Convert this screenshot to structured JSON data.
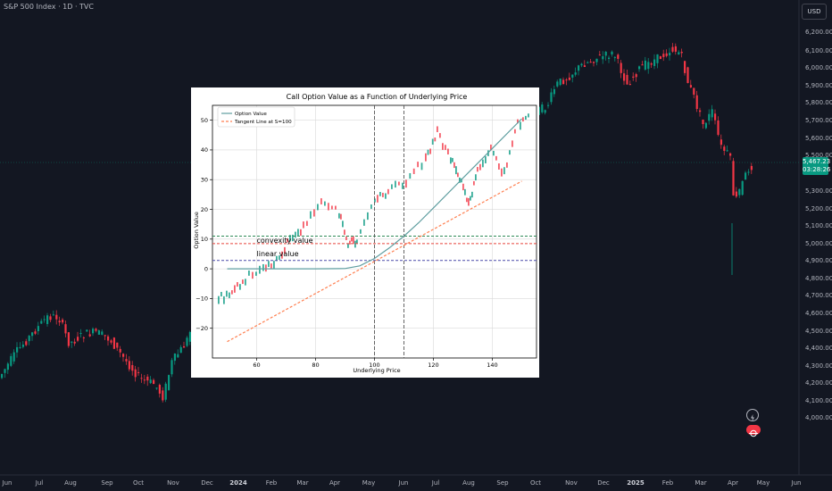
{
  "header": {
    "title": "S&P 500 Index · 1D · TVC",
    "currency": "USD"
  },
  "price_axis": {
    "ticks": [
      "6,200.00",
      "6,100.00",
      "6,000.00",
      "5,900.00",
      "5,800.00",
      "5,700.00",
      "5,600.00",
      "5,500.00",
      "5,300.00",
      "5,200.00",
      "5,100.00",
      "5,000.00",
      "4,900.00",
      "4,800.00",
      "4,700.00",
      "4,600.00",
      "4,500.00",
      "4,400.00",
      "4,300.00",
      "4,200.00",
      "4,100.00",
      "4,000.00"
    ],
    "last_price": "5,467.23",
    "countdown": "03:28:26",
    "last_price_color": "#089981"
  },
  "time_axis": {
    "ticks": [
      "Jun",
      "Jul",
      "Aug",
      "Sep",
      "Oct",
      "Nov",
      "Dec",
      "2024",
      "Feb",
      "Mar",
      "Apr",
      "May",
      "Jun",
      "Jul",
      "Aug",
      "Sep",
      "Oct",
      "Nov",
      "Dec",
      "2025",
      "Feb",
      "Mar",
      "Apr",
      "May",
      "Jun"
    ]
  },
  "colors": {
    "up": "#089981",
    "down": "#f23645",
    "background": "#131722",
    "grid": "#1e222d"
  },
  "icons": [
    "alert-icon",
    "flag-icon"
  ],
  "inset_chart": {
    "chart_data": {
      "type": "line",
      "title": "Call Option Value as a Function of Underlying Price",
      "xlabel": "Underlying Price",
      "ylabel": "Option Value",
      "xlim": [
        45,
        155
      ],
      "ylim": [
        -30,
        55
      ],
      "xticks": [
        60,
        80,
        100,
        120,
        140
      ],
      "yticks": [
        -20,
        -10,
        0,
        10,
        20,
        30,
        40,
        50
      ],
      "grid": true,
      "legend_position": "top-left",
      "series": [
        {
          "name": "Option Value",
          "color": "#5f9ea0",
          "style": "solid",
          "x": [
            50,
            60,
            70,
            80,
            90,
            95,
            100,
            105,
            110,
            115,
            120,
            130,
            140,
            150
          ],
          "y": [
            0,
            0,
            0,
            0,
            0.1,
            1.0,
            3.5,
            7.0,
            11.0,
            15.5,
            20.5,
            30.5,
            40.5,
            50.5
          ]
        },
        {
          "name": "Tangent Line at S=100",
          "color": "#ff7f50",
          "style": "dashed",
          "x": [
            50,
            150
          ],
          "y": [
            -24.5,
            29.5
          ]
        }
      ],
      "vlines": [
        {
          "x": 100,
          "color": "#555555",
          "style": "dashed"
        },
        {
          "x": 110,
          "color": "#555555",
          "style": "dashed"
        }
      ],
      "hlines": [
        {
          "y": 11.0,
          "color": "#2e8b57",
          "style": "dashed"
        },
        {
          "y": 8.5,
          "color": "#e8453c",
          "style": "dashed"
        },
        {
          "y": 2.8,
          "color": "#4a4aa8",
          "style": "dashed"
        }
      ],
      "annotations": [
        {
          "text": "convexity value",
          "x": 60,
          "y": 8.8
        },
        {
          "text": "linear value",
          "x": 60,
          "y": 4.2
        }
      ]
    }
  }
}
